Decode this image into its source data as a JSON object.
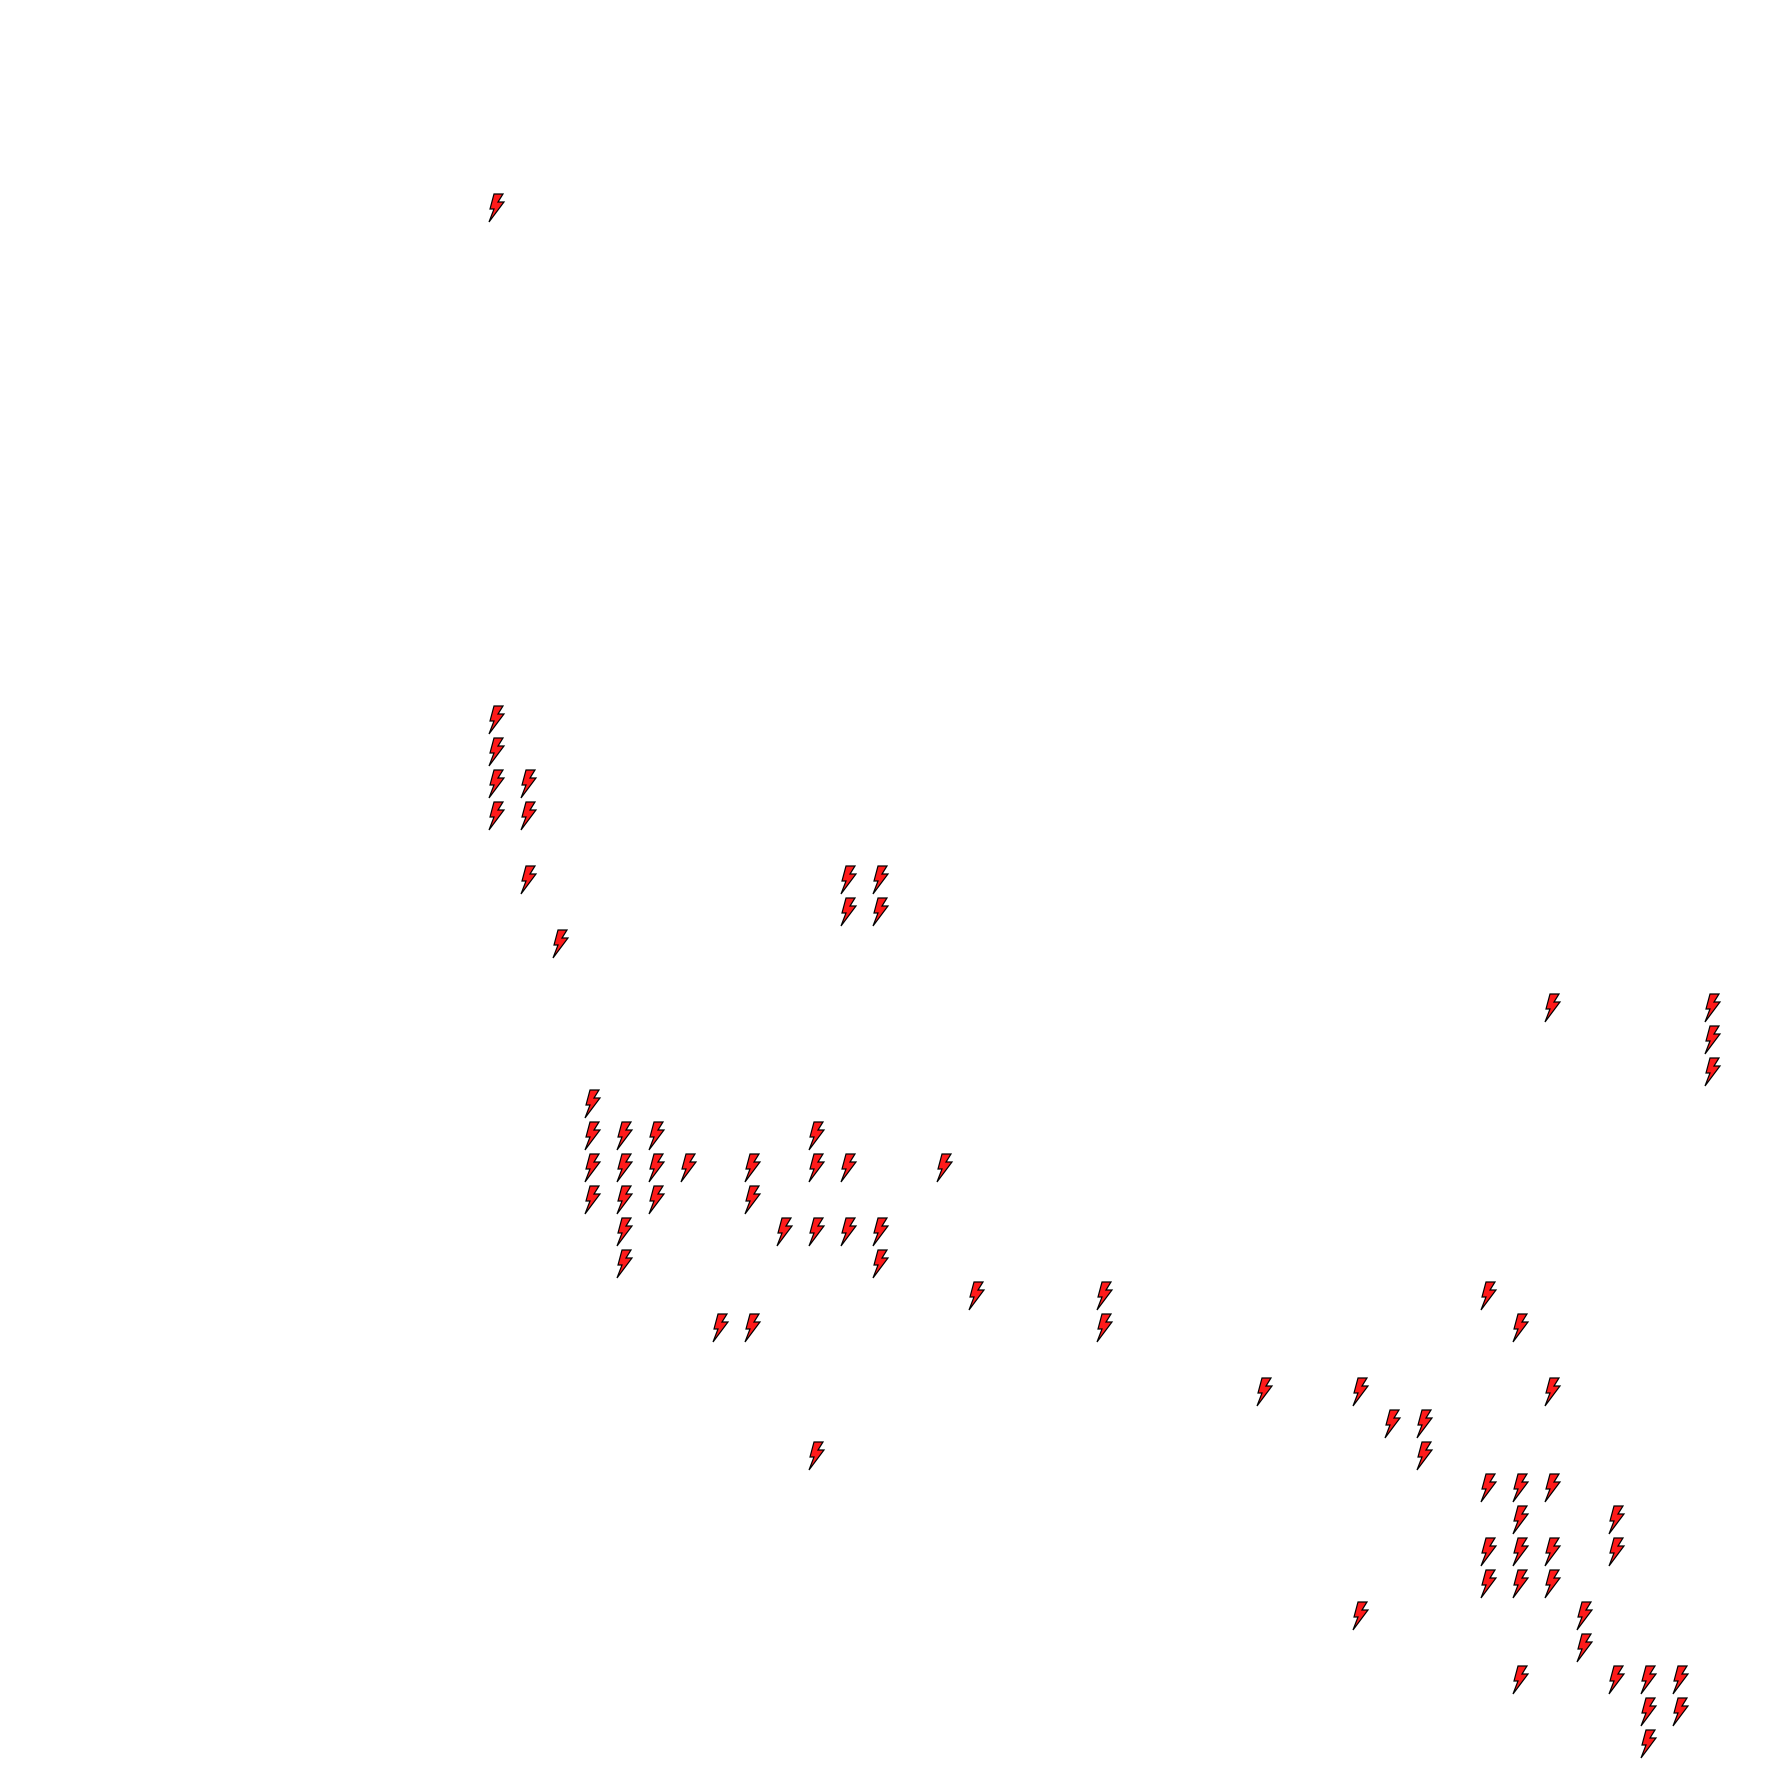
{
  "board": {
    "icon": "lightning-bolt-icon",
    "colors": {
      "fill": "#ff1a1a",
      "stroke": "#000000",
      "background": "#ffffff"
    },
    "bolts": [
      [
        0,
        0
      ],
      [
        0,
        16
      ],
      [
        0,
        17
      ],
      [
        0,
        18
      ],
      [
        1,
        18
      ],
      [
        0,
        19
      ],
      [
        1,
        19
      ],
      [
        1,
        21
      ],
      [
        11,
        21
      ],
      [
        12,
        21
      ],
      [
        11,
        22
      ],
      [
        12,
        22
      ],
      [
        2,
        23
      ],
      [
        33,
        25
      ],
      [
        38,
        25
      ],
      [
        38,
        26
      ],
      [
        38,
        27
      ],
      [
        3,
        28
      ],
      [
        3,
        29
      ],
      [
        4,
        29
      ],
      [
        5,
        29
      ],
      [
        10,
        29
      ],
      [
        3,
        30
      ],
      [
        4,
        30
      ],
      [
        5,
        30
      ],
      [
        6,
        30
      ],
      [
        8,
        30
      ],
      [
        10,
        30
      ],
      [
        11,
        30
      ],
      [
        14,
        30
      ],
      [
        3,
        31
      ],
      [
        4,
        31
      ],
      [
        5,
        31
      ],
      [
        8,
        31
      ],
      [
        4,
        32
      ],
      [
        9,
        32
      ],
      [
        10,
        32
      ],
      [
        11,
        32
      ],
      [
        12,
        32
      ],
      [
        4,
        33
      ],
      [
        12,
        33
      ],
      [
        15,
        34
      ],
      [
        19,
        34
      ],
      [
        31,
        34
      ],
      [
        7,
        35
      ],
      [
        8,
        35
      ],
      [
        19,
        35
      ],
      [
        32,
        35
      ],
      [
        24,
        37
      ],
      [
        27,
        37
      ],
      [
        33,
        37
      ],
      [
        28,
        38
      ],
      [
        29,
        38
      ],
      [
        10,
        39
      ],
      [
        29,
        39
      ],
      [
        31,
        40
      ],
      [
        32,
        40
      ],
      [
        33,
        40
      ],
      [
        32,
        41
      ],
      [
        35,
        41
      ],
      [
        31,
        42
      ],
      [
        32,
        42
      ],
      [
        33,
        42
      ],
      [
        35,
        42
      ],
      [
        31,
        43
      ],
      [
        32,
        43
      ],
      [
        33,
        43
      ],
      [
        27,
        44
      ],
      [
        34,
        44
      ],
      [
        34,
        45
      ],
      [
        32,
        46
      ],
      [
        35,
        46
      ],
      [
        36,
        46
      ],
      [
        37,
        46
      ],
      [
        36,
        47
      ],
      [
        37,
        47
      ],
      [
        36,
        48
      ]
    ]
  }
}
